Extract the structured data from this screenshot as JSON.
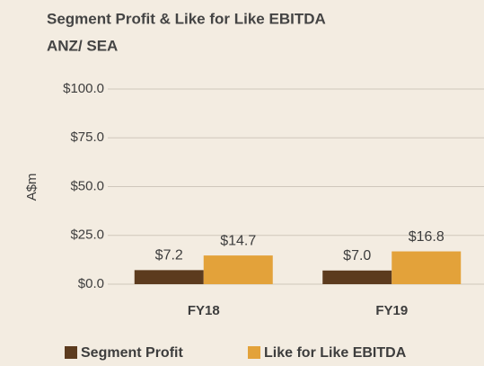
{
  "chart_data": {
    "type": "bar",
    "title": "Segment Profit & Like for Like EBITDA",
    "subtitle": "ANZ/ SEA",
    "y_label": "A$m",
    "categories": [
      "FY18",
      "FY19"
    ],
    "series": [
      {
        "name": "Segment Profit",
        "color": "#5c3b1e",
        "values": [
          7.2,
          7.0
        ],
        "value_labels": [
          "$7.2",
          "$7.0"
        ]
      },
      {
        "name": "Like for Like EBITDA",
        "color": "#e3a23a",
        "values": [
          14.7,
          16.8
        ],
        "value_labels": [
          "$14.7",
          "$16.8"
        ]
      }
    ],
    "ylim": [
      0,
      100
    ],
    "yticks": [
      {
        "value": 0,
        "label": "$0.0"
      },
      {
        "value": 25,
        "label": "$25.0"
      },
      {
        "value": 50,
        "label": "$50.0"
      },
      {
        "value": 75,
        "label": "$75.0"
      },
      {
        "value": 100,
        "label": "$100.0"
      }
    ],
    "grid": true,
    "legend": "bottom"
  }
}
